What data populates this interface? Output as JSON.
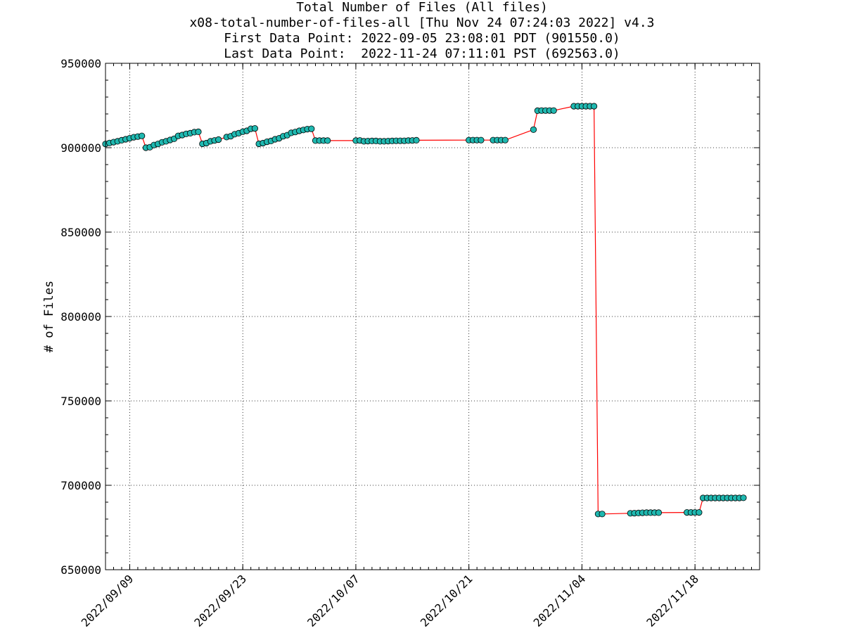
{
  "chart_data": {
    "type": "line",
    "title": "Total Number of Files (All files)",
    "subtitle_lines": [
      "x08-total-number-of-files-all [Thu Nov 24 07:24:03 2022] v4.3",
      "First Data Point: 2022-09-05 23:08:01 PDT (901550.0)",
      "Last Data Point:  2022-11-24 07:11:01 PST (692563.0)"
    ],
    "xlabel": "",
    "ylabel": "# of Files",
    "xlim": [
      "2022-09-06",
      "2022-11-26"
    ],
    "ylim": [
      650000,
      950000
    ],
    "x_ticks": [
      "2022/09/09",
      "2022/09/23",
      "2022/10/07",
      "2022/10/21",
      "2022/11/04",
      "2022/11/18"
    ],
    "y_ticks": [
      "650000",
      "700000",
      "750000",
      "800000",
      "850000",
      "900000",
      "950000"
    ],
    "grid": true,
    "line_color": "#ff0000",
    "marker_color": "#1fb8b0",
    "series": [
      {
        "x": [
          "2022-09-06",
          "2022-09-06T12:00",
          "2022-09-07",
          "2022-09-07T12:00",
          "2022-09-08",
          "2022-09-08T12:00",
          "2022-09-09",
          "2022-09-09T12:00",
          "2022-09-10",
          "2022-09-10T12:00",
          "2022-09-11",
          "2022-09-11T12:00",
          "2022-09-12",
          "2022-09-12T12:00",
          "2022-09-13",
          "2022-09-13T12:00",
          "2022-09-14",
          "2022-09-14T12:00",
          "2022-09-15",
          "2022-09-15T12:00",
          "2022-09-16",
          "2022-09-16T12:00",
          "2022-09-17",
          "2022-09-17T12:00",
          "2022-09-18",
          "2022-09-18T12:00",
          "2022-09-19",
          "2022-09-19T12:00",
          "2022-09-20",
          "2022-09-21",
          "2022-09-21T12:00",
          "2022-09-22",
          "2022-09-22T12:00",
          "2022-09-23",
          "2022-09-23T12:00",
          "2022-09-24",
          "2022-09-24T12:00",
          "2022-09-25",
          "2022-09-25T12:00",
          "2022-09-26",
          "2022-09-26T12:00",
          "2022-09-27",
          "2022-09-27T12:00",
          "2022-09-28",
          "2022-09-28T12:00",
          "2022-09-29",
          "2022-09-29T12:00",
          "2022-09-30",
          "2022-09-30T12:00",
          "2022-10-01",
          "2022-10-01T12:00",
          "2022-10-02",
          "2022-10-02T12:00",
          "2022-10-03",
          "2022-10-03T12:00",
          "2022-10-07",
          "2022-10-07T12:00",
          "2022-10-08",
          "2022-10-08T12:00",
          "2022-10-09",
          "2022-10-09T12:00",
          "2022-10-10",
          "2022-10-10T12:00",
          "2022-10-11",
          "2022-10-11T12:00",
          "2022-10-12",
          "2022-10-12T12:00",
          "2022-10-13",
          "2022-10-13T12:00",
          "2022-10-14",
          "2022-10-14T12:00",
          "2022-10-21",
          "2022-10-21T12:00",
          "2022-10-22",
          "2022-10-22T12:00",
          "2022-10-24",
          "2022-10-24T12:00",
          "2022-10-25",
          "2022-10-25T12:00",
          "2022-10-29",
          "2022-10-29T12:00",
          "2022-10-30",
          "2022-10-30T12:00",
          "2022-10-31",
          "2022-10-31T12:00",
          "2022-11-03",
          "2022-11-03T12:00",
          "2022-11-04",
          "2022-11-04T12:00",
          "2022-11-05",
          "2022-11-05T12:00",
          "2022-11-06",
          "2022-11-06T12:00",
          "2022-11-10",
          "2022-11-10T12:00",
          "2022-11-11",
          "2022-11-11T12:00",
          "2022-11-12",
          "2022-11-12T12:00",
          "2022-11-13",
          "2022-11-13T12:00",
          "2022-11-17",
          "2022-11-17T12:00",
          "2022-11-18",
          "2022-11-18T12:00",
          "2022-11-19",
          "2022-11-19T12:00",
          "2022-11-20",
          "2022-11-20T12:00",
          "2022-11-21",
          "2022-11-21T12:00",
          "2022-11-22",
          "2022-11-22T12:00",
          "2022-11-23",
          "2022-11-23T12:00",
          "2022-11-24"
        ],
        "y": [
          902200,
          902800,
          903300,
          903800,
          904400,
          905000,
          905600,
          906200,
          906600,
          907000,
          900000,
          900300,
          901600,
          902200,
          903200,
          903800,
          904600,
          905300,
          907000,
          907500,
          908200,
          908600,
          909200,
          909400,
          902300,
          902700,
          903800,
          904300,
          904800,
          906300,
          906800,
          908000,
          908600,
          909500,
          910000,
          911200,
          911400,
          902300,
          902700,
          903500,
          904000,
          905000,
          905600,
          906800,
          907400,
          908800,
          909300,
          910000,
          910500,
          911000,
          911200,
          904200,
          904200,
          904200,
          904200,
          904200,
          904300,
          903800,
          903900,
          904000,
          904000,
          903800,
          903800,
          903900,
          904000,
          904100,
          904100,
          904100,
          904200,
          904300,
          904400,
          904500,
          904500,
          904500,
          904500,
          904500,
          904500,
          904500,
          904500,
          910700,
          921900,
          922000,
          922000,
          922000,
          922000,
          924600,
          924600,
          924600,
          924600,
          924600,
          924600,
          683000,
          683000,
          683400,
          683500,
          683600,
          683700,
          683800,
          683800,
          683800,
          683800,
          683900,
          683900,
          683900,
          683900,
          692500,
          692500,
          692500,
          692500,
          692500,
          692500,
          692500,
          692500,
          692500,
          692500,
          692563
        ]
      }
    ]
  }
}
